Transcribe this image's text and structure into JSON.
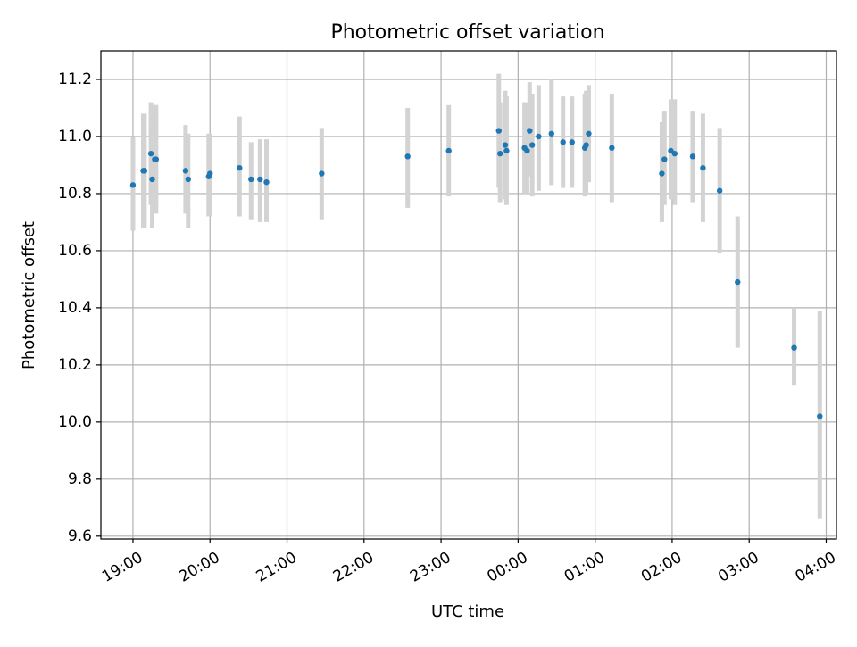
{
  "chart_data": {
    "type": "scatter",
    "title": "Photometric offset variation",
    "xlabel": "UTC time",
    "ylabel": "Photometric offset",
    "x_tick_labels": [
      "19:00",
      "20:00",
      "21:00",
      "22:00",
      "23:00",
      "00:00",
      "01:00",
      "02:00",
      "03:00",
      "04:00"
    ],
    "y_tick_labels": [
      "9.6",
      "9.8",
      "10.0",
      "10.2",
      "10.4",
      "10.6",
      "10.8",
      "11.0",
      "11.2"
    ],
    "xlim": [
      "18:35",
      "04:08"
    ],
    "ylim": [
      9.59,
      11.3
    ],
    "grid": true,
    "colors": {
      "marker": "#1f77b4",
      "errorbar": "#d3d3d3",
      "grid": "#b0b0b0"
    },
    "series": [
      {
        "x": [
          "19:00",
          "19:08",
          "19:09",
          "19:14",
          "19:15",
          "19:17",
          "19:18",
          "19:41",
          "19:43",
          "19:59",
          "20:00",
          "20:23",
          "20:32",
          "20:39",
          "20:44",
          "21:27",
          "22:34",
          "23:06",
          "23:45",
          "23:46",
          "23:50",
          "23:51",
          "00:05",
          "00:07",
          "00:09",
          "00:11",
          "00:16",
          "00:26",
          "00:35",
          "00:42",
          "00:52",
          "00:53",
          "00:55",
          "01:13",
          "01:52",
          "01:54",
          "01:59",
          "02:02",
          "02:16",
          "02:24",
          "02:37",
          "02:51",
          "03:35",
          "03:55"
        ],
        "y": [
          10.83,
          10.88,
          10.88,
          10.94,
          10.85,
          10.92,
          10.92,
          10.88,
          10.85,
          10.86,
          10.87,
          10.89,
          10.85,
          10.85,
          10.84,
          10.87,
          10.93,
          10.95,
          11.02,
          10.94,
          10.97,
          10.95,
          10.96,
          10.95,
          11.02,
          10.97,
          11.0,
          11.01,
          10.98,
          10.98,
          10.96,
          10.97,
          11.01,
          10.96,
          10.87,
          10.92,
          10.95,
          10.94,
          10.93,
          10.89,
          10.81,
          10.49,
          10.26,
          10.02
        ],
        "err_low": [
          10.67,
          10.68,
          10.68,
          10.76,
          10.68,
          10.73,
          10.73,
          10.73,
          10.68,
          10.72,
          10.72,
          10.72,
          10.71,
          10.7,
          10.7,
          10.71,
          10.75,
          10.79,
          10.82,
          10.77,
          10.78,
          10.76,
          10.8,
          10.8,
          10.86,
          10.79,
          10.81,
          10.83,
          10.82,
          10.82,
          10.79,
          10.8,
          10.84,
          10.77,
          10.7,
          10.76,
          10.78,
          10.76,
          10.77,
          10.7,
          10.59,
          10.26,
          10.13,
          9.66
        ],
        "err_high": [
          11.0,
          11.08,
          11.08,
          11.12,
          11.03,
          11.11,
          11.11,
          11.04,
          11.01,
          11.01,
          11.01,
          11.07,
          10.98,
          10.99,
          10.99,
          11.03,
          11.1,
          11.11,
          11.22,
          11.12,
          11.16,
          11.14,
          11.12,
          11.12,
          11.19,
          11.15,
          11.18,
          11.2,
          11.14,
          11.14,
          11.15,
          11.16,
          11.18,
          11.15,
          11.05,
          11.09,
          11.13,
          11.13,
          11.09,
          11.08,
          11.03,
          10.72,
          10.4,
          10.39
        ]
      }
    ]
  }
}
